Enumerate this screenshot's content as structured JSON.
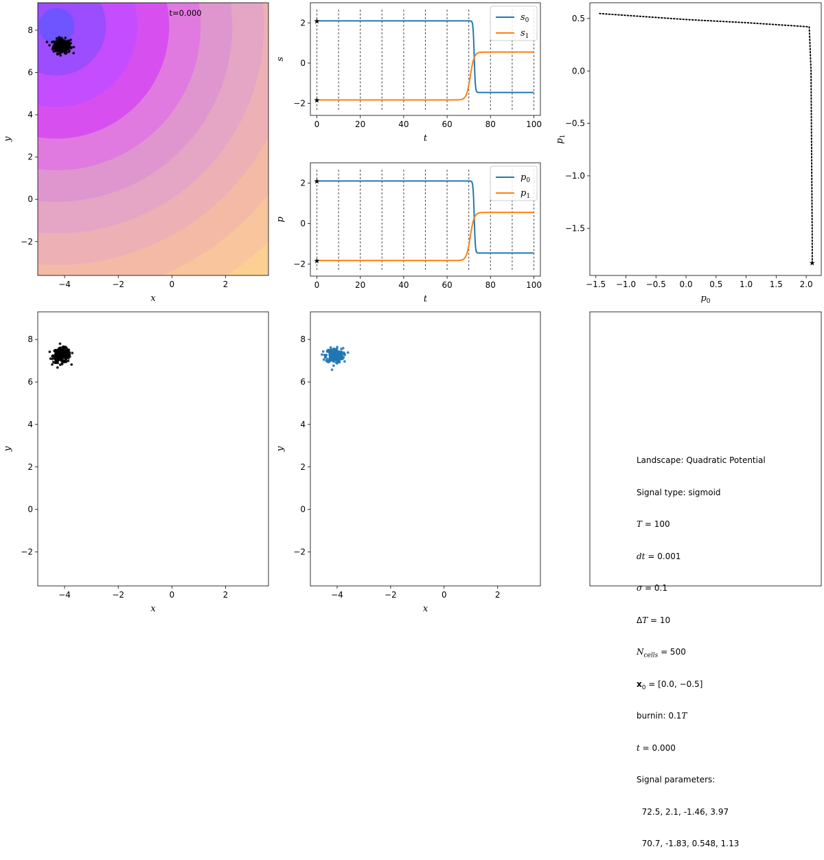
{
  "chart_data": [
    {
      "id": "landscape",
      "type": "heatmap",
      "annotation": "t=0.000",
      "xlabel": "x",
      "ylabel": "y",
      "xlim": [
        -5,
        3.6
      ],
      "ylim": [
        -3.6,
        9.3
      ],
      "xticks": [
        -4,
        -2,
        0,
        2
      ],
      "yticks": [
        -2,
        0,
        2,
        4,
        6,
        8
      ],
      "potential_center": [
        -4.3,
        8.2
      ],
      "contour_colors": [
        "#6e55ff",
        "#9b4dff",
        "#c44dff",
        "#d84ff0",
        "#e07ae0",
        "#df96cf",
        "#e4a6c4",
        "#edb0b4",
        "#f5baa6",
        "#f8c59c",
        "#fbd092",
        "#fedb8a",
        "#ffe48a"
      ],
      "cluster": {
        "x": -4.1,
        "y": 7.25,
        "spread": 0.16,
        "color": "#000000"
      }
    },
    {
      "id": "signal",
      "type": "line",
      "xlabel": "t",
      "ylabel": "s",
      "xlim": [
        -3,
        103
      ],
      "ylim": [
        -2.6,
        3.0
      ],
      "xticks": [
        0,
        20,
        40,
        60,
        80,
        100
      ],
      "yticks": [
        -2,
        0,
        2
      ],
      "vlines": [
        0,
        10,
        20,
        30,
        40,
        50,
        60,
        70,
        80,
        90,
        100
      ],
      "legend": "top-right",
      "series": [
        {
          "name": "s0",
          "label_base": "s",
          "label_sub": "0",
          "color": "#1f77b4",
          "t_switch": 72.5,
          "v0": 2.1,
          "v1": -1.46,
          "rate": 3.97
        },
        {
          "name": "s1",
          "label_base": "s",
          "label_sub": "1",
          "color": "#ff7f0e",
          "t_switch": 70.7,
          "v0": -1.83,
          "v1": 0.548,
          "rate": 1.13
        }
      ]
    },
    {
      "id": "params",
      "type": "line",
      "xlabel": "t",
      "ylabel": "p",
      "xlim": [
        -3,
        103
      ],
      "ylim": [
        -2.6,
        3.0
      ],
      "xticks": [
        0,
        20,
        40,
        60,
        80,
        100
      ],
      "yticks": [
        -2,
        0,
        2
      ],
      "vlines": [
        0,
        10,
        20,
        30,
        40,
        50,
        60,
        70,
        80,
        90,
        100
      ],
      "legend": "top-right",
      "series": [
        {
          "name": "p0",
          "label_base": "p",
          "label_sub": "0",
          "color": "#1f77b4",
          "t_switch": 72.5,
          "v0": 2.1,
          "v1": -1.46,
          "rate": 3.97
        },
        {
          "name": "p1",
          "label_base": "p",
          "label_sub": "1",
          "color": "#ff7f0e",
          "t_switch": 70.7,
          "v0": -1.83,
          "v1": 0.548,
          "rate": 1.13
        }
      ]
    },
    {
      "id": "phase",
      "type": "line",
      "xlabel": "p0",
      "ylabel": "p1",
      "xlabel_base": "p",
      "xlabel_sub": "0",
      "ylabel_base": "p",
      "ylabel_sub": "1",
      "xlim": [
        -1.6,
        2.25
      ],
      "ylim": [
        -1.95,
        0.65
      ],
      "xticks": [
        -1.5,
        -1.0,
        -0.5,
        0.0,
        0.5,
        1.0,
        1.5,
        2.0
      ],
      "yticks": [
        -1.5,
        -1.0,
        -0.5,
        0.0,
        0.5
      ],
      "points": [
        [
          2.1,
          -1.83
        ],
        [
          2.1,
          -1.6
        ],
        [
          2.09,
          -0.8
        ],
        [
          2.08,
          0.0
        ],
        [
          2.05,
          0.42
        ],
        [
          1.8,
          0.43
        ],
        [
          1.0,
          0.46
        ],
        [
          0.0,
          0.49
        ],
        [
          -1.46,
          0.548
        ]
      ],
      "start": [
        2.1,
        -1.83
      ]
    },
    {
      "id": "cells_black",
      "type": "scatter",
      "xlabel": "x",
      "ylabel": "y",
      "xlim": [
        -5,
        3.6
      ],
      "ylim": [
        -3.6,
        9.3
      ],
      "xticks": [
        -4,
        -2,
        0,
        2
      ],
      "yticks": [
        -2,
        0,
        2,
        4,
        6,
        8
      ],
      "cluster": {
        "x": -4.1,
        "y": 7.25,
        "spread": 0.16,
        "color": "#000000"
      }
    },
    {
      "id": "cells_blue",
      "type": "scatter",
      "xlabel": "x",
      "ylabel": "y",
      "xlim": [
        -5,
        3.6
      ],
      "ylim": [
        -3.6,
        9.3
      ],
      "xticks": [
        -4,
        -2,
        0,
        2
      ],
      "yticks": [
        -2,
        0,
        2,
        4,
        6,
        8
      ],
      "cluster": {
        "x": -4.1,
        "y": 7.25,
        "spread": 0.16,
        "color": "#1f77b4"
      }
    }
  ],
  "info": {
    "landscape": "Landscape: Quadratic Potential",
    "signal_type": "Signal type: sigmoid",
    "T": "T = 100",
    "dt": "dt = 0.001",
    "sigma": "σ = 0.1",
    "DeltaT": "ΔT = 10",
    "ncells": "N_cells = 500",
    "x0": "x0 = [0.0, −0.5]",
    "burnin": "burnin: 0.1T",
    "t": "t = 0.000",
    "signal_params_label": "Signal parameters:",
    "params_row1": "  72.5, 2.1, -1.46, 3.97",
    "params_row2": "  70.7, -1.83, 0.548, 1.13"
  }
}
